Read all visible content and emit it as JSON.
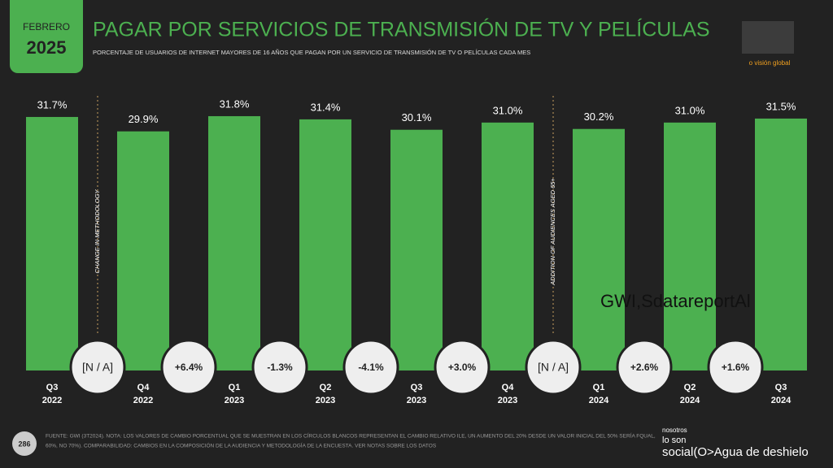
{
  "header": {
    "month": "FEBRERO",
    "year": "2025",
    "brand": "o visión global"
  },
  "chart_data": {
    "type": "bar",
    "title": "PAGAR POR SERVICIOS DE TRANSMISIÓN DE TV Y PELÍCULAS",
    "subtitle": "PORCENTAJE DE USUARIOS DE INTERNET MAYORES DE 16 AÑOS QUE PAGAN POR UN SERVICIO DE TRANSMISIÓN DE TV O PELÍCULAS CADA MES",
    "categories": [
      "Q3",
      "Q4",
      "Q1",
      "Q2",
      "Q3",
      "Q4",
      "Q1",
      "Q2",
      "Q3"
    ],
    "category_years": [
      "2022",
      "2022",
      "2023",
      "2023",
      "2023",
      "2023",
      "2024",
      "2024",
      "2024"
    ],
    "values": [
      31.7,
      29.9,
      31.8,
      31.4,
      30.1,
      31.0,
      30.2,
      31.0,
      31.5
    ],
    "value_labels": [
      "31.7%",
      "29.9%",
      "31.8%",
      "31.4%",
      "30.1%",
      "31.0%",
      "30.2%",
      "31.0%",
      "31.5%"
    ],
    "changes": [
      null,
      6.4,
      -1.3,
      -4.1,
      3.0,
      null,
      2.6,
      1.6
    ],
    "change_labels": [
      "[N / A]",
      "+6.4%",
      "-1.3%",
      "-4.1%",
      "+3.0%",
      "[N / A]",
      "+2.6%",
      "+1.6%"
    ],
    "color": "#4cb050",
    "ylim": [
      0,
      32
    ],
    "annotations": [
      {
        "text": "CHANGE IN METHODOLOGY",
        "after": 0
      },
      {
        "text": "ADDITION OF AUDIENCES AGED 65+",
        "after": 5
      }
    ],
    "watermark": "GWI,SdatareportAl"
  },
  "footer": {
    "page": "286",
    "source": "FUENTE: GWI (3T2024). NOTA: LOS VALORES DE CAMBIO PORCENTUAL QUE SE MUESTRAN EN LOS CÍRCULOS BLANCOS REPRESENTAN EL CAMBIO RELATIVO ILE, UN AUMENTO DEL 20% DESDE UN VALOR INICIAL DEL 50% SERÍA FQUAL,",
    "source2": "60%, NO 70%). COMPARABILIDAD: CAMBIOS EN LA COMPOSICIÓN DE LA AUDIENCIA Y METODOLOGÍA DE LA ENCUESTA. VER NOTAS SOBRE LOS DATOS",
    "logo1": "nosotros",
    "logo2": "lo son",
    "logo3": "social(O>Agua de deshielo"
  }
}
